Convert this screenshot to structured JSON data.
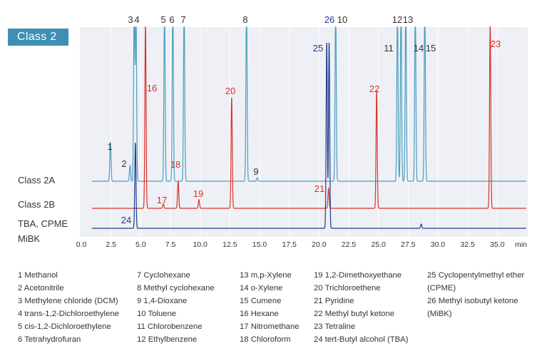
{
  "badge": "Class 2",
  "trace_labels": {
    "a": "Class 2A",
    "b": "Class 2B",
    "c1": "TBA, CPME",
    "c2": "MiBK"
  },
  "colors": {
    "a": "#4a9ec0",
    "b": "#d9322b",
    "c": "#1f3a8a",
    "plot_bg": "#eef0f5",
    "grid": "#ffffff",
    "text": "#333333"
  },
  "chart_data": {
    "type": "line",
    "xlabel": "min",
    "xlim": [
      0,
      37.5
    ],
    "xticks": [
      0.0,
      2.5,
      5.0,
      7.5,
      10.0,
      12.5,
      15.0,
      17.5,
      20.0,
      22.5,
      25.0,
      27.5,
      30.0,
      32.5,
      35.0
    ],
    "xtick_labels": [
      "0.0",
      "2.5",
      "5.0",
      "7.5",
      "10.0",
      "12.5",
      "15.0",
      "17.5",
      "20.0",
      "22.5",
      "25.0",
      "27.5",
      "30.0",
      "32.5",
      "35.0"
    ],
    "grid": true,
    "series": [
      {
        "name": "Class 2A",
        "color": "#4a9ec0",
        "baseline": 0,
        "peaks": [
          {
            "label": "1",
            "x": 2.45,
            "h": 55
          },
          {
            "label": "2",
            "x": 4.1,
            "h": 22
          },
          {
            "label": "3",
            "x": 4.45,
            "h": 250
          },
          {
            "label": "4",
            "x": 4.6,
            "h": 250
          },
          {
            "label": "5",
            "x": 7.0,
            "h": 250
          },
          {
            "label": "6",
            "x": 7.7,
            "h": 250
          },
          {
            "label": "7",
            "x": 8.65,
            "h": 250
          },
          {
            "label": "8",
            "x": 13.9,
            "h": 250
          },
          {
            "label": "9",
            "x": 14.8,
            "h": 5
          },
          {
            "label": "10",
            "x": 21.4,
            "h": 250
          },
          {
            "label": "11",
            "x": 26.6,
            "h": 250
          },
          {
            "label": "12",
            "x": 26.9,
            "h": 250
          },
          {
            "label": "13",
            "x": 27.3,
            "h": 250
          },
          {
            "label": "14",
            "x": 28.1,
            "h": 250
          },
          {
            "label": "15",
            "x": 28.9,
            "h": 250
          }
        ]
      },
      {
        "name": "Class 2B",
        "color": "#d9322b",
        "baseline": 0,
        "peaks": [
          {
            "label": "16",
            "x": 5.4,
            "h": 260
          },
          {
            "label": "17",
            "x": 6.9,
            "h": 6
          },
          {
            "label": "18",
            "x": 8.15,
            "h": 38
          },
          {
            "label": "19",
            "x": 9.9,
            "h": 12
          },
          {
            "label": "20",
            "x": 12.65,
            "h": 155
          },
          {
            "label": "21",
            "x": 20.8,
            "h": 28
          },
          {
            "label": "22",
            "x": 24.85,
            "h": 165
          },
          {
            "label": "23",
            "x": 34.4,
            "h": 260
          }
        ]
      },
      {
        "name": "TBA, CPME MiBK",
        "color": "#1f3a8a",
        "baseline": 0,
        "peaks": [
          {
            "label": "24",
            "x": 4.55,
            "h": 120
          },
          {
            "label": "25",
            "x": 20.65,
            "h": 260
          },
          {
            "label": "26",
            "x": 20.85,
            "h": 260
          },
          {
            "label": "",
            "x": 28.6,
            "h": 6
          }
        ]
      }
    ]
  },
  "legend": [
    [
      "1  Methanol",
      "2  Acetonitrile",
      "3  Methylene chloride (DCM)",
      "4  trans-1,2-Dichloroethylene",
      "5  cis-1,2-Dichloroethylene",
      "6  Tetrahydrofuran"
    ],
    [
      "7   Cyclohexane",
      "8   Methyl cyclohexane",
      "9   1,4-Dioxane",
      "10  Toluene",
      "11  Chlorobenzene",
      "12  Ethylbenzene"
    ],
    [
      "13  m,p-Xylene",
      "14  o-Xylene",
      "15  Cumene",
      "16  Hexane",
      "17  Nitromethane",
      "18  Chloroform"
    ],
    [
      "19  1,2-Dimethoxyethane",
      "20  Trichloroethene",
      "21  Pyridine",
      "22  Methyl butyl ketone",
      "23  Tetraline",
      "24  tert-Butyl alcohol (TBA)"
    ],
    [
      "25  Cyclopentylmethyl ether",
      "      (CPME)",
      "26  Methyl isobutyl ketone",
      "      (MiBK)"
    ]
  ]
}
